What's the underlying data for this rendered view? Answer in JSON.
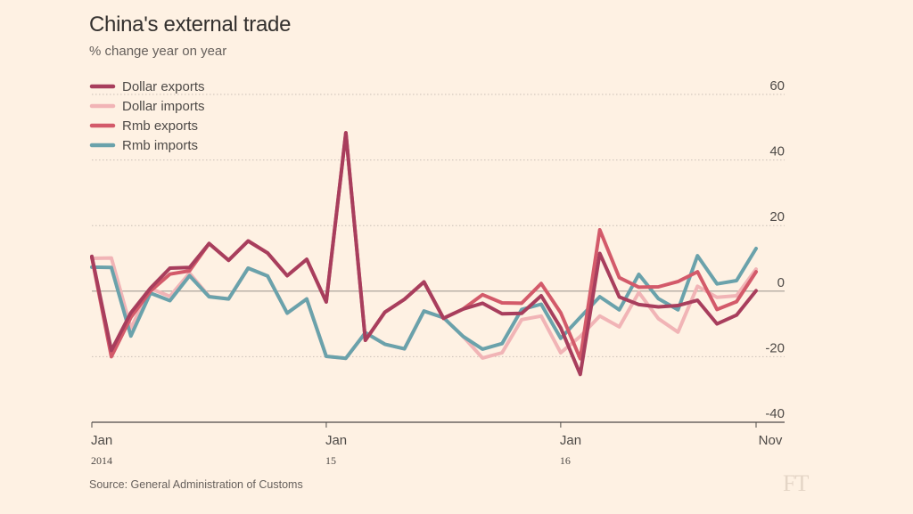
{
  "title": "China's external trade",
  "subtitle": "% change year on year",
  "source": "Source: General Administration of Customs",
  "logo": "FT",
  "chart_data": {
    "type": "line",
    "title": "China's external trade",
    "subtitle": "% change year on year",
    "xlabel": "",
    "ylabel": "",
    "x": [
      "2014-01",
      "2014-02",
      "2014-03",
      "2014-04",
      "2014-05",
      "2014-06",
      "2014-07",
      "2014-08",
      "2014-09",
      "2014-10",
      "2014-11",
      "2014-12",
      "2015-01",
      "2015-02",
      "2015-03",
      "2015-04",
      "2015-05",
      "2015-06",
      "2015-07",
      "2015-08",
      "2015-09",
      "2015-10",
      "2015-11",
      "2015-12",
      "2016-01",
      "2016-02",
      "2016-03",
      "2016-04",
      "2016-05",
      "2016-06",
      "2016-07",
      "2016-08",
      "2016-09",
      "2016-10",
      "2016-11"
    ],
    "x_ticks": [
      {
        "x": "2014-01",
        "label": "Jan",
        "year": "2014"
      },
      {
        "x": "2015-01",
        "label": "Jan",
        "year": "15"
      },
      {
        "x": "2016-01",
        "label": "Jan",
        "year": "16"
      },
      {
        "x": "2016-11",
        "label": "Nov",
        "year": ""
      }
    ],
    "ylim": [
      -40,
      60
    ],
    "y_ticks": [
      60,
      40,
      20,
      0,
      -20,
      -40
    ],
    "grid": true,
    "legend_position": "top-left",
    "series": [
      {
        "name": "Dollar exports",
        "color": "#a83e5d",
        "values": [
          10.6,
          -18.1,
          -6.6,
          0.9,
          7.0,
          7.2,
          14.5,
          9.4,
          15.3,
          11.6,
          4.7,
          9.7,
          -3.3,
          48.3,
          -15.0,
          -6.4,
          -2.5,
          2.8,
          -8.3,
          -5.5,
          -3.7,
          -6.9,
          -6.8,
          -1.4,
          -11.2,
          -25.4,
          11.5,
          -1.8,
          -4.1,
          -4.8,
          -4.4,
          -2.8,
          -10.0,
          -7.3,
          0.1
        ]
      },
      {
        "name": "Dollar imports",
        "color": "#f1b4b6",
        "values": [
          10.0,
          10.1,
          -11.3,
          0.8,
          -1.6,
          5.5,
          -1.6,
          -2.4,
          7.0,
          4.6,
          -6.7,
          -2.4,
          -19.9,
          -20.5,
          -12.7,
          -16.2,
          -17.6,
          -6.1,
          -8.1,
          -13.8,
          -20.4,
          -18.8,
          -8.7,
          -7.6,
          -18.8,
          -13.8,
          -7.6,
          -10.9,
          -0.4,
          -8.4,
          -12.5,
          1.5,
          -1.9,
          -1.4,
          6.7
        ]
      },
      {
        "name": "Rmb exports",
        "color": "#d35a6a",
        "values": [
          10.3,
          -20.0,
          -8.0,
          0.0,
          5.2,
          6.2,
          14.5,
          9.4,
          15.3,
          11.6,
          4.7,
          9.7,
          -3.3,
          48.3,
          -15.0,
          -6.4,
          -2.5,
          2.8,
          -8.3,
          -5.5,
          -1.1,
          -3.6,
          -3.7,
          2.3,
          -6.6,
          -20.6,
          18.7,
          4.1,
          1.2,
          1.3,
          2.9,
          5.9,
          -5.6,
          -3.2,
          5.9
        ]
      },
      {
        "name": "Rmb imports",
        "color": "#6aa2ab",
        "values": [
          7.3,
          7.2,
          -13.7,
          -0.6,
          -2.9,
          4.7,
          -1.7,
          -2.4,
          7.0,
          4.6,
          -6.7,
          -2.4,
          -19.9,
          -20.5,
          -12.7,
          -16.2,
          -17.6,
          -6.1,
          -8.1,
          -13.8,
          -17.7,
          -16.0,
          -5.6,
          -4.0,
          -14.4,
          -8.0,
          -1.7,
          -5.7,
          5.1,
          -2.3,
          -5.7,
          10.8,
          2.2,
          3.2,
          13.0
        ]
      }
    ]
  }
}
